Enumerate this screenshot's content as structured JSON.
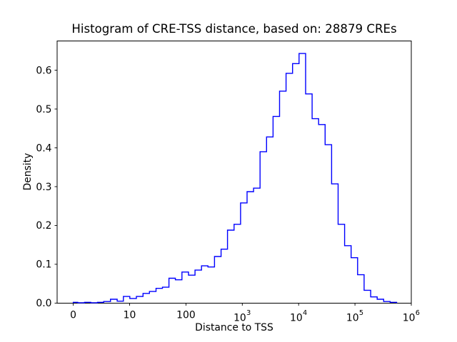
{
  "chart_data": {
    "type": "bar",
    "subtype": "step-histogram",
    "title": "Histogram of CRE-TSS distance, based on: 28879 CREs",
    "xlabel": "Distance to TSS",
    "ylabel": "Density",
    "cre_count": 28879,
    "xscale": "symlog",
    "grid": false,
    "legend": null,
    "line_color": "#0000ff",
    "background_color": "#ffffff",
    "ylim": [
      0,
      0.676
    ],
    "xlim": [
      0,
      1000000
    ],
    "xticks": [
      {
        "value": 0,
        "label": "0"
      },
      {
        "value": 10,
        "label": "10"
      },
      {
        "value": 100,
        "label": "100"
      },
      {
        "value": 1000,
        "label": "10^3"
      },
      {
        "value": 10000,
        "label": "10^4"
      },
      {
        "value": 100000,
        "label": "10^5"
      },
      {
        "value": 1000000,
        "label": "10^6"
      }
    ],
    "yticks": [
      {
        "value": 0.0,
        "label": "0.0"
      },
      {
        "value": 0.1,
        "label": "0.1"
      },
      {
        "value": 0.2,
        "label": "0.2"
      },
      {
        "value": 0.3,
        "label": "0.3"
      },
      {
        "value": 0.4,
        "label": "0.4"
      },
      {
        "value": 0.5,
        "label": "0.5"
      },
      {
        "value": 0.6,
        "label": "0.6"
      }
    ],
    "bin_edges": [
      0,
      0.8,
      2,
      3.1,
      4.3,
      5.4,
      6.6,
      7.8,
      8.9,
      10.1,
      13.2,
      17.3,
      22.5,
      29.4,
      38.3,
      50,
      65,
      85,
      111,
      145,
      189,
      246,
      321,
      420,
      547,
      714,
      931,
      1215,
      1585,
      2068,
      2698,
      3519,
      4591,
      5989,
      7813,
      10190,
      13300,
      17350,
      22630,
      29520,
      38510,
      50240,
      65540,
      85500,
      111500,
      145500,
      190100,
      247900,
      323400,
      421900,
      550400
    ],
    "densities": [
      0.002,
      0.001,
      0.002,
      0.001,
      0.002,
      0.004,
      0.01,
      0.005,
      0.017,
      0.012,
      0.017,
      0.025,
      0.03,
      0.038,
      0.041,
      0.064,
      0.06,
      0.08,
      0.072,
      0.085,
      0.096,
      0.093,
      0.12,
      0.139,
      0.188,
      0.203,
      0.258,
      0.287,
      0.296,
      0.39,
      0.428,
      0.481,
      0.546,
      0.592,
      0.617,
      0.643,
      0.539,
      0.475,
      0.46,
      0.408,
      0.307,
      0.203,
      0.148,
      0.117,
      0.073,
      0.033,
      0.016,
      0.01,
      0.004,
      0.002
    ]
  }
}
